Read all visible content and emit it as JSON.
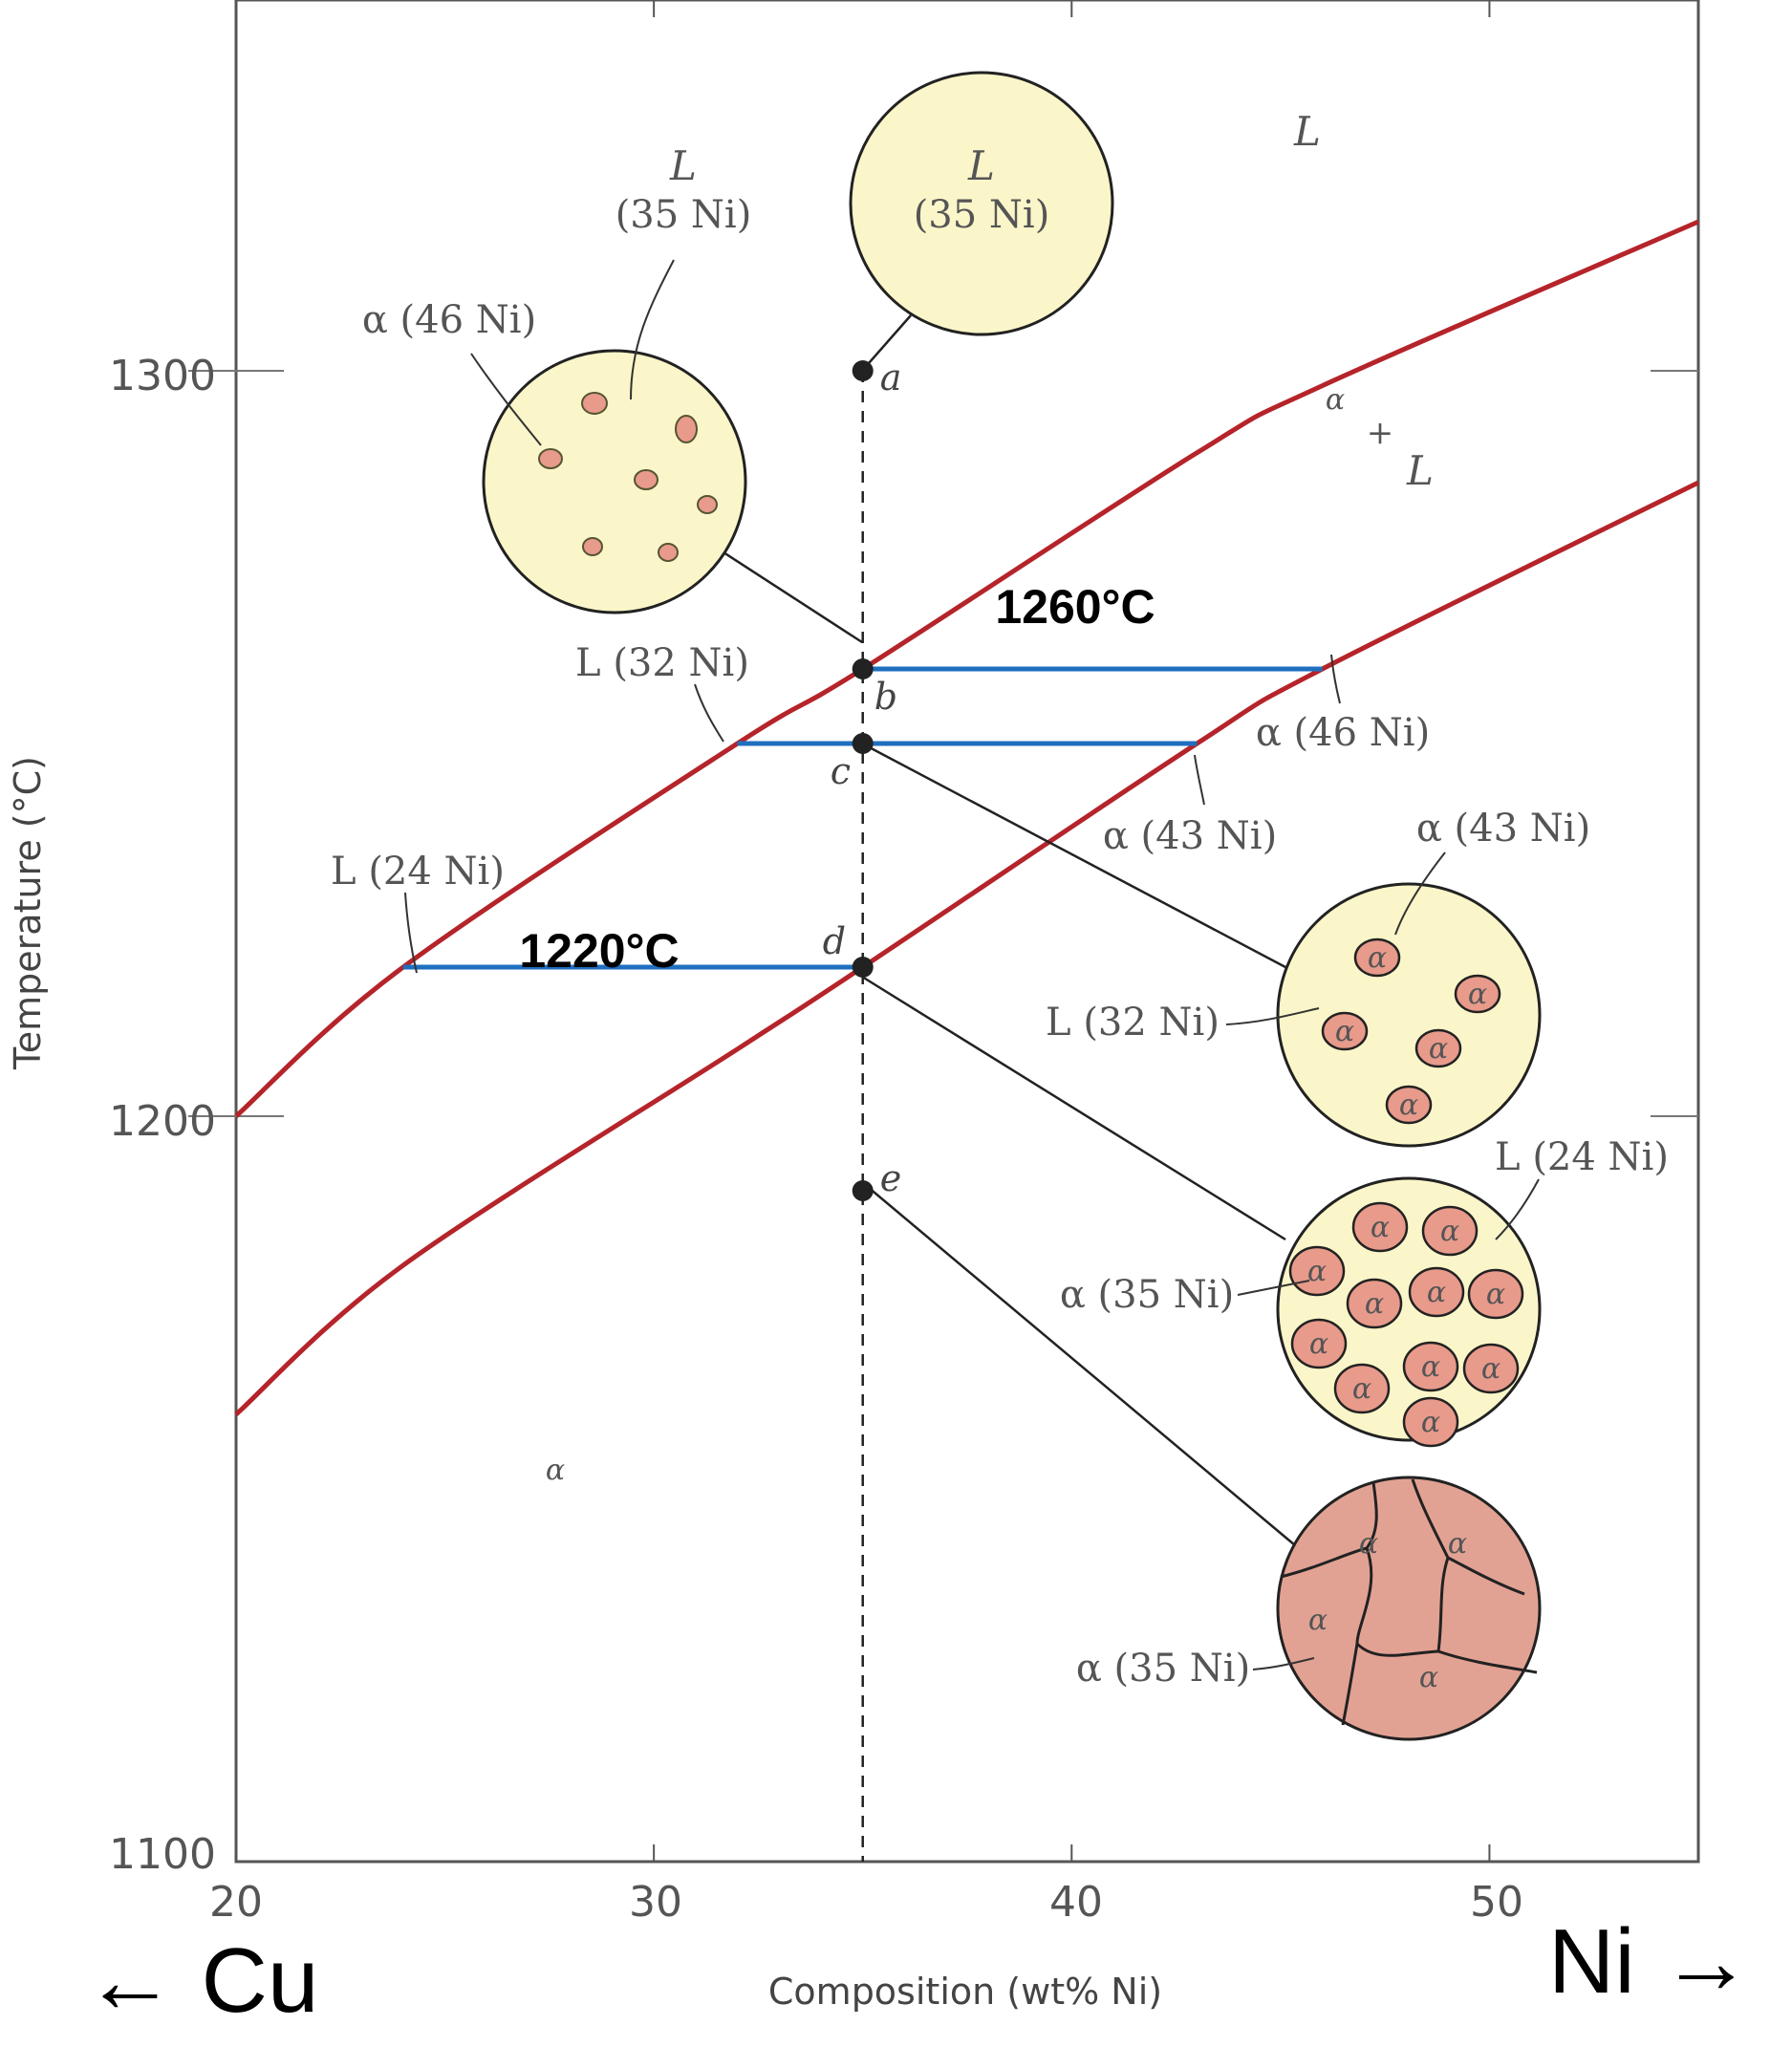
{
  "chart_data": {
    "type": "line",
    "title": "",
    "xlabel": "Composition (wt% Ni)",
    "ylabel": "Temperature (°C)",
    "xlim": [
      20,
      55
    ],
    "ylim": [
      1100,
      1350
    ],
    "x_ticks": [
      "20",
      "30",
      "40",
      "50"
    ],
    "y_ticks": [
      "1100",
      "1200",
      "1300"
    ],
    "series": [
      {
        "x": [
          20,
          24,
          32,
          35,
          43,
          46,
          55
        ],
        "y": [
          1200,
          1220,
          1250,
          1260,
          1289,
          1298,
          1320
        ]
      },
      {
        "x": [
          20,
          24,
          32,
          35,
          43,
          46,
          55
        ],
        "y": [
          1160,
          1180,
          1209,
          1220,
          1250,
          1260,
          1285
        ]
      }
    ],
    "tie_lines": [
      {
        "label": "1260°C",
        "temperature": 1260,
        "x_from": 35,
        "x_to": 46
      },
      {
        "temperature": 1250,
        "x_from": 32,
        "x_to": 43
      },
      {
        "label": "1220°C",
        "temperature": 1220,
        "x_from": 24,
        "x_to": 35
      }
    ],
    "vertical_line": {
      "x": 35,
      "style": "dashed"
    },
    "points": [
      {
        "label": "a",
        "x": 35,
        "y": 1300
      },
      {
        "label": "b",
        "x": 35,
        "y": 1260
      },
      {
        "label": "c",
        "x": 35,
        "y": 1250
      },
      {
        "label": "d",
        "x": 35,
        "y": 1220
      },
      {
        "label": "e",
        "x": 35,
        "y": 1190
      }
    ],
    "region_labels": {
      "liquid": "L",
      "two_phase_top": "α",
      "two_phase_plus": "+",
      "two_phase_bottom": "L",
      "solid": "α"
    },
    "annotations": {
      "L35_sym": "L",
      "L35_comp": "(35 Ni)",
      "a46": "α (46 Ni)",
      "L32_left": "L (32 Ni)",
      "L24_left": "L (24 Ni)",
      "a46_right": "α (46 Ni)",
      "a43_mid": "α (43 Ni)",
      "a43_right": "α (43 Ni)",
      "L32_right": "L (32 Ni)",
      "L24_right": "L (24 Ni)",
      "a35_d": "α (35 Ni)",
      "a35_e": "α (35 Ni)",
      "grain_alpha": "α"
    },
    "element_labels": {
      "left": "← Cu",
      "right": "Ni →"
    },
    "colors": {
      "boundary": "#b5242a",
      "tie_line": "#1f6fbf",
      "liquid_fill": "#fbf6c9",
      "alpha_fill": "#e2a293",
      "alpha_particle": "#e89a8b"
    }
  }
}
